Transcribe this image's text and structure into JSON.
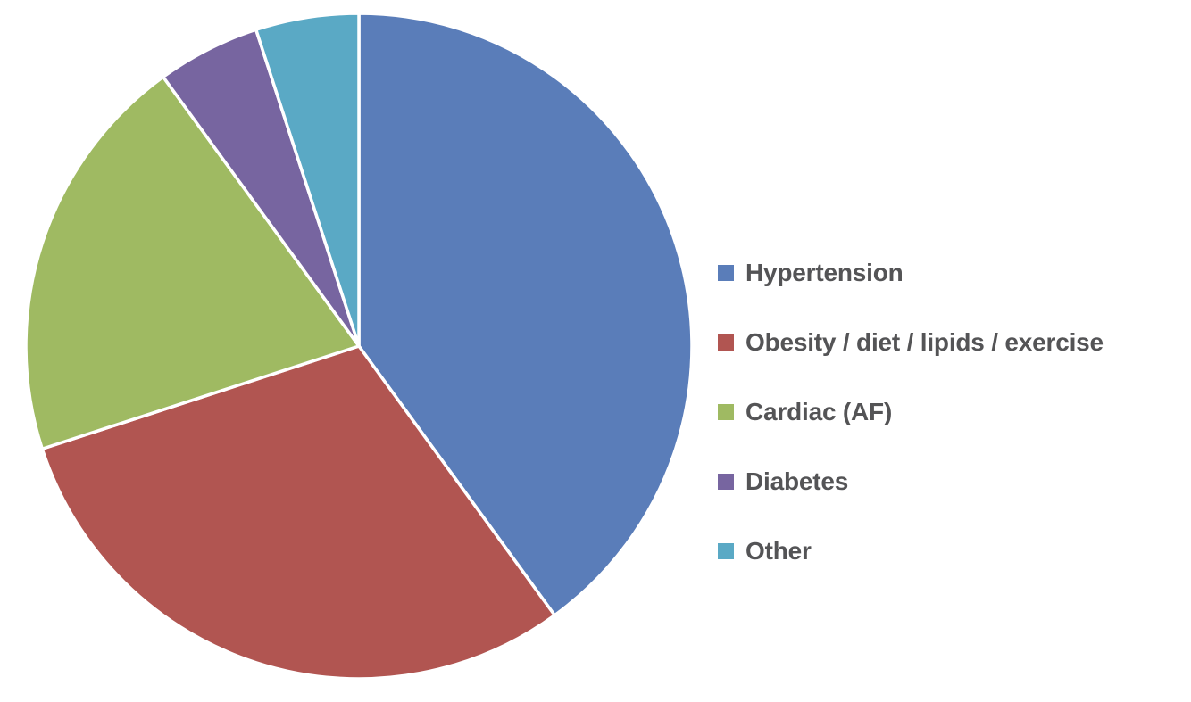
{
  "page": {
    "background_color": "#ffffff"
  },
  "chart_data": {
    "type": "pie",
    "title": "",
    "labels": [
      "Hypertension",
      "Obesity / diet / lipids / exercise",
      "Cardiac (AF)",
      "Diabetes",
      "Other"
    ],
    "values": [
      40,
      30,
      20,
      5,
      5
    ],
    "unit": "percent-estimated-from-slice-angles",
    "colors": [
      "#5A7DB9",
      "#B15551",
      "#9FBA62",
      "#7765A0",
      "#5AA9C5"
    ],
    "start_angle_deg": 0,
    "direction": "clockwise",
    "slice_border_color": "#ffffff",
    "legend_position": "right",
    "legend_text_color": "#545456"
  }
}
